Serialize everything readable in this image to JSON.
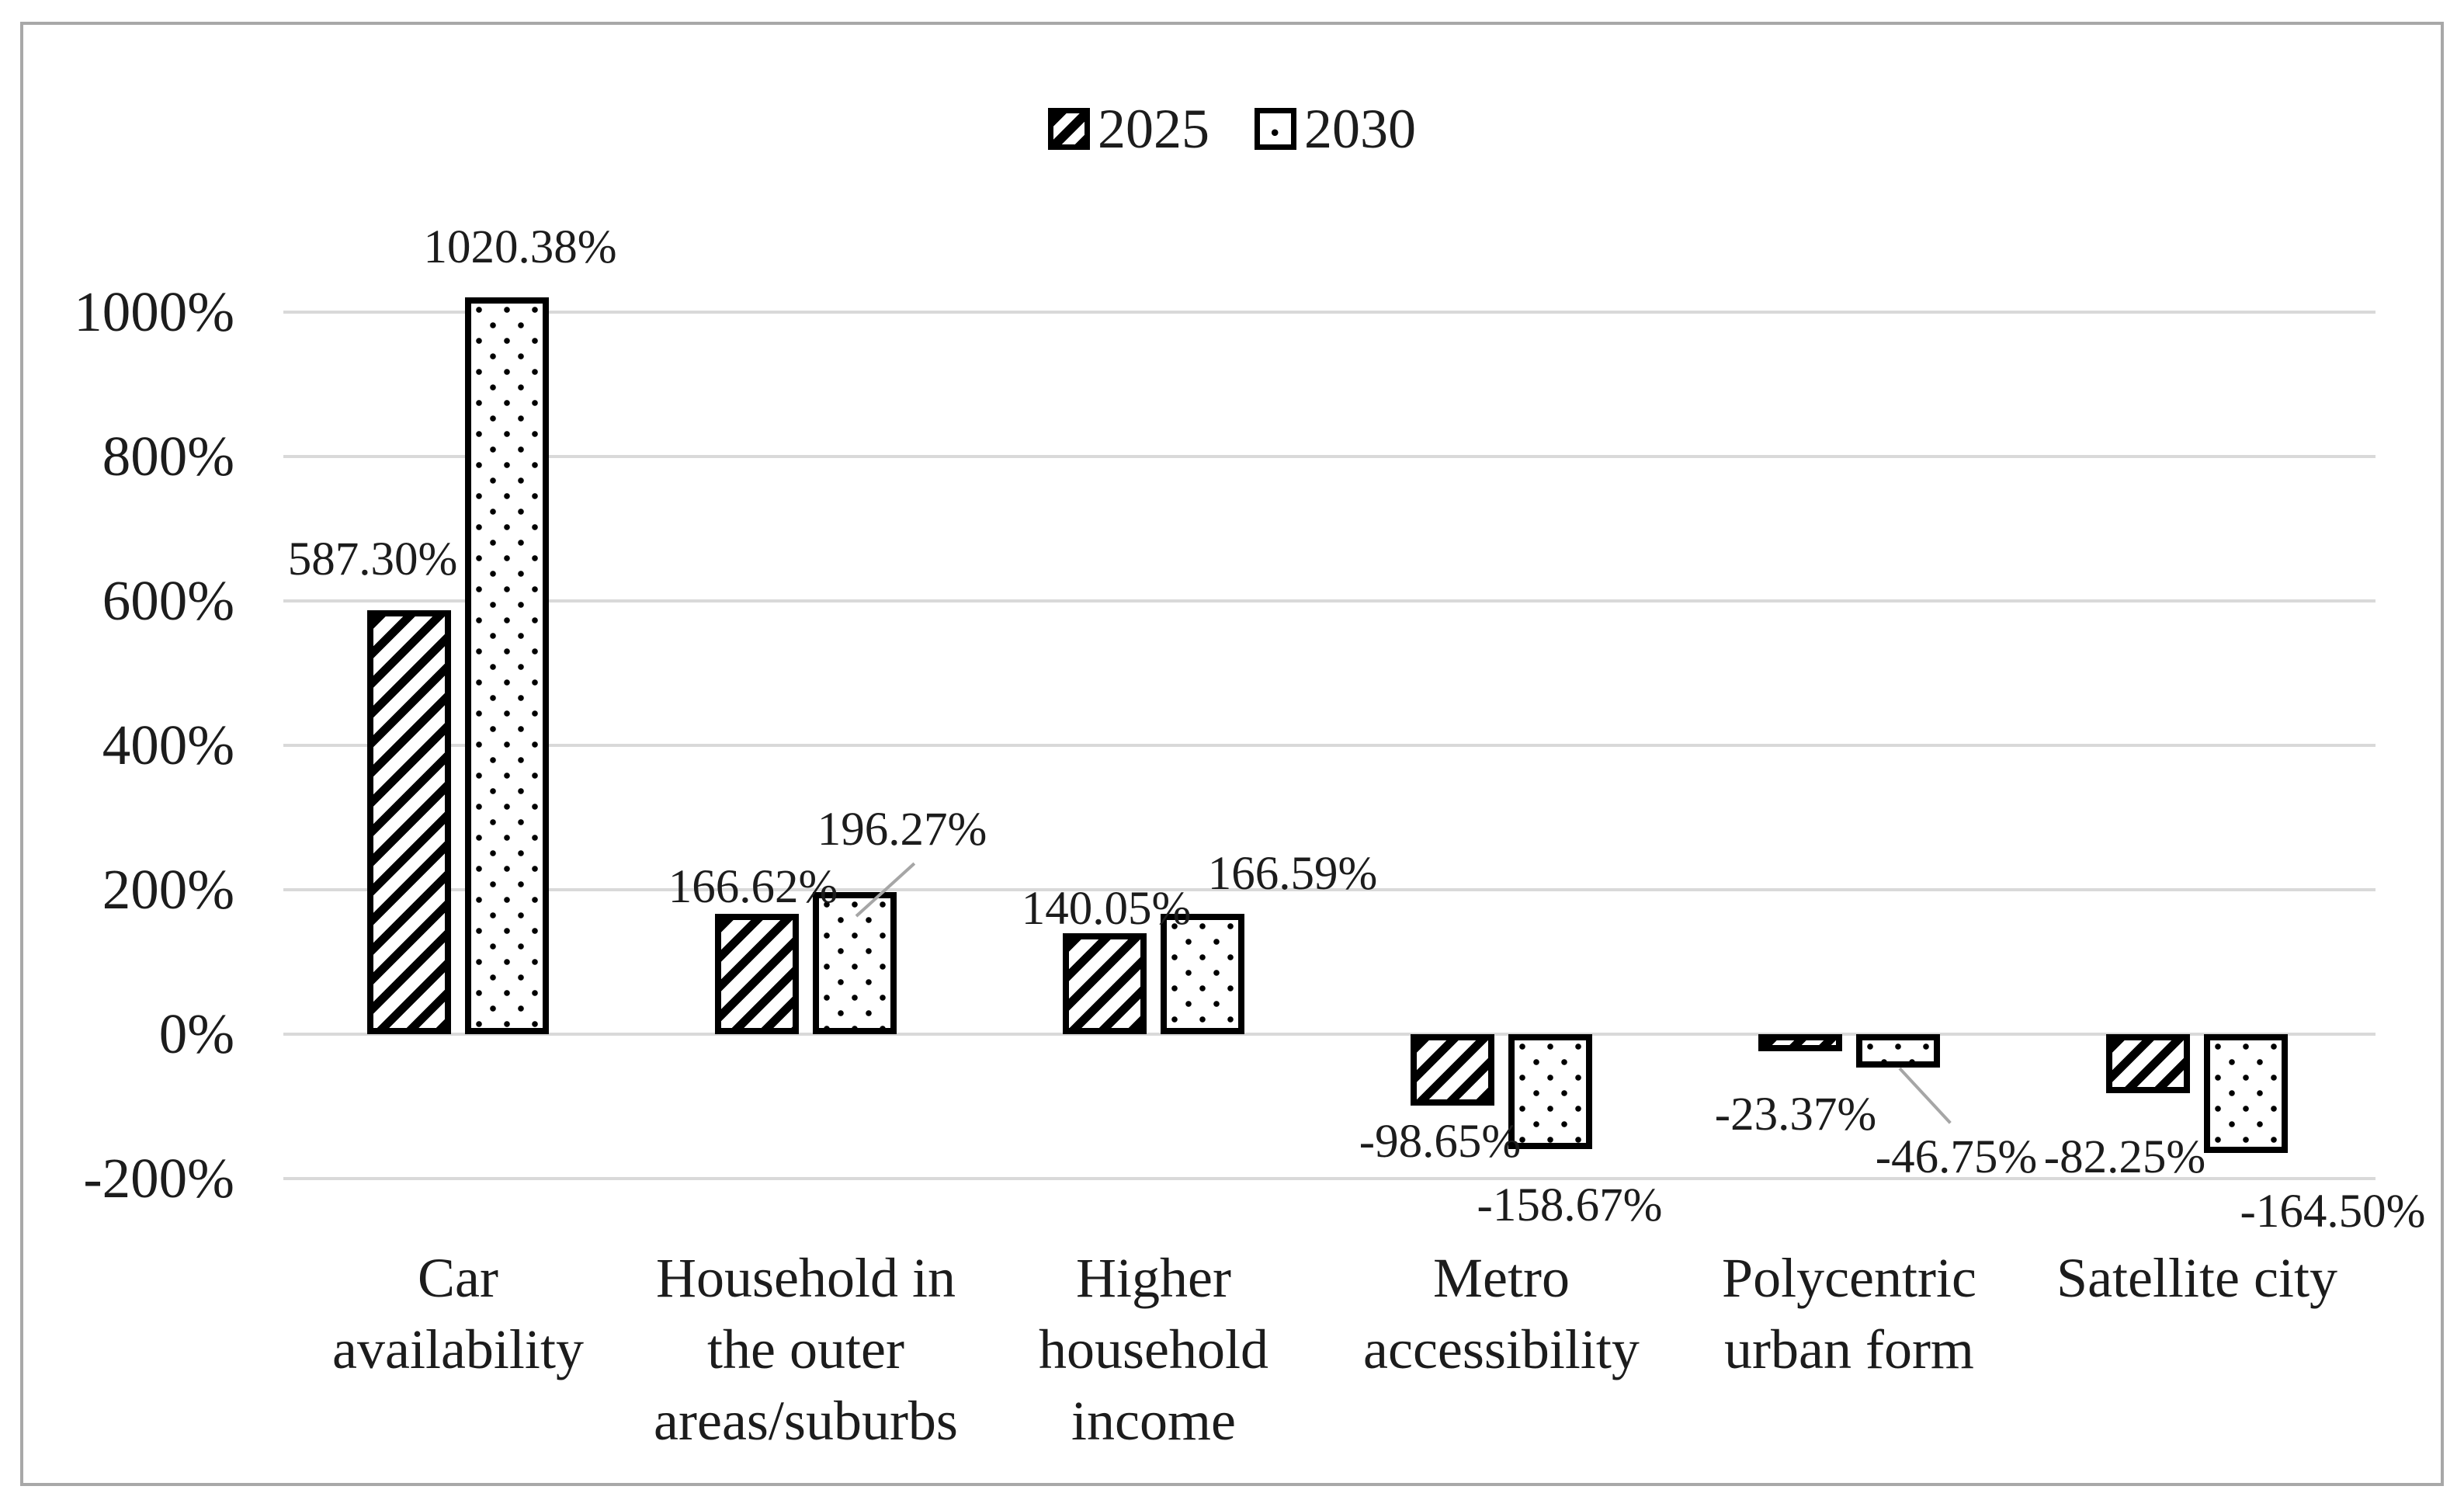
{
  "legend": {
    "items": [
      {
        "label": "2025",
        "pattern": "diagonal-hatch"
      },
      {
        "label": "2030",
        "pattern": "dots"
      }
    ]
  },
  "chart_data": {
    "type": "bar",
    "title": "",
    "xlabel": "",
    "ylabel": "",
    "categories": [
      {
        "id": "car-availability",
        "label_lines": [
          "Car",
          "availability"
        ]
      },
      {
        "id": "household-outer-areas",
        "label_lines": [
          "Household in",
          "the outer",
          "areas/suburbs"
        ]
      },
      {
        "id": "higher-household-income",
        "label_lines": [
          "Higher",
          "household",
          "income"
        ]
      },
      {
        "id": "metro-accessibility",
        "label_lines": [
          "Metro",
          "accessibility"
        ]
      },
      {
        "id": "polycentric-urban-form",
        "label_lines": [
          "Polycentric",
          "urban form"
        ]
      },
      {
        "id": "satellite-city",
        "label_lines": [
          "Satellite city"
        ]
      }
    ],
    "series": [
      {
        "name": "2025",
        "pattern": "diagonal-hatch",
        "values": [
          587.3,
          166.62,
          140.05,
          -98.65,
          -23.37,
          -82.25
        ],
        "data_labels": [
          "587.30%",
          "166.62%",
          "140.05%",
          "-98.65%",
          "-23.37%",
          "-82.25%"
        ]
      },
      {
        "name": "2030",
        "pattern": "dots",
        "values": [
          1020.38,
          196.27,
          166.59,
          -158.67,
          -46.75,
          -164.5
        ],
        "data_labels": [
          "1020.38%",
          "196.27%",
          "166.59%",
          "-158.67%",
          "-46.75%",
          "-164.50%"
        ]
      }
    ],
    "y_axis": {
      "min": -200,
      "max": 1000,
      "step": 200,
      "tick_labels": [
        "1000%",
        "800%",
        "600%",
        "400%",
        "200%",
        "0%",
        "-200%"
      ],
      "unit": "percent"
    },
    "grid": true,
    "legend_position": "top-center",
    "colors": {
      "bar_border": "#000000",
      "bar_fill": "#ffffff",
      "gridline": "#d9d9d9",
      "leader_line": "#a6a6a6",
      "text": "#1c1c1c",
      "frame_border": "#a8a8a8",
      "background": "#ffffff"
    }
  }
}
